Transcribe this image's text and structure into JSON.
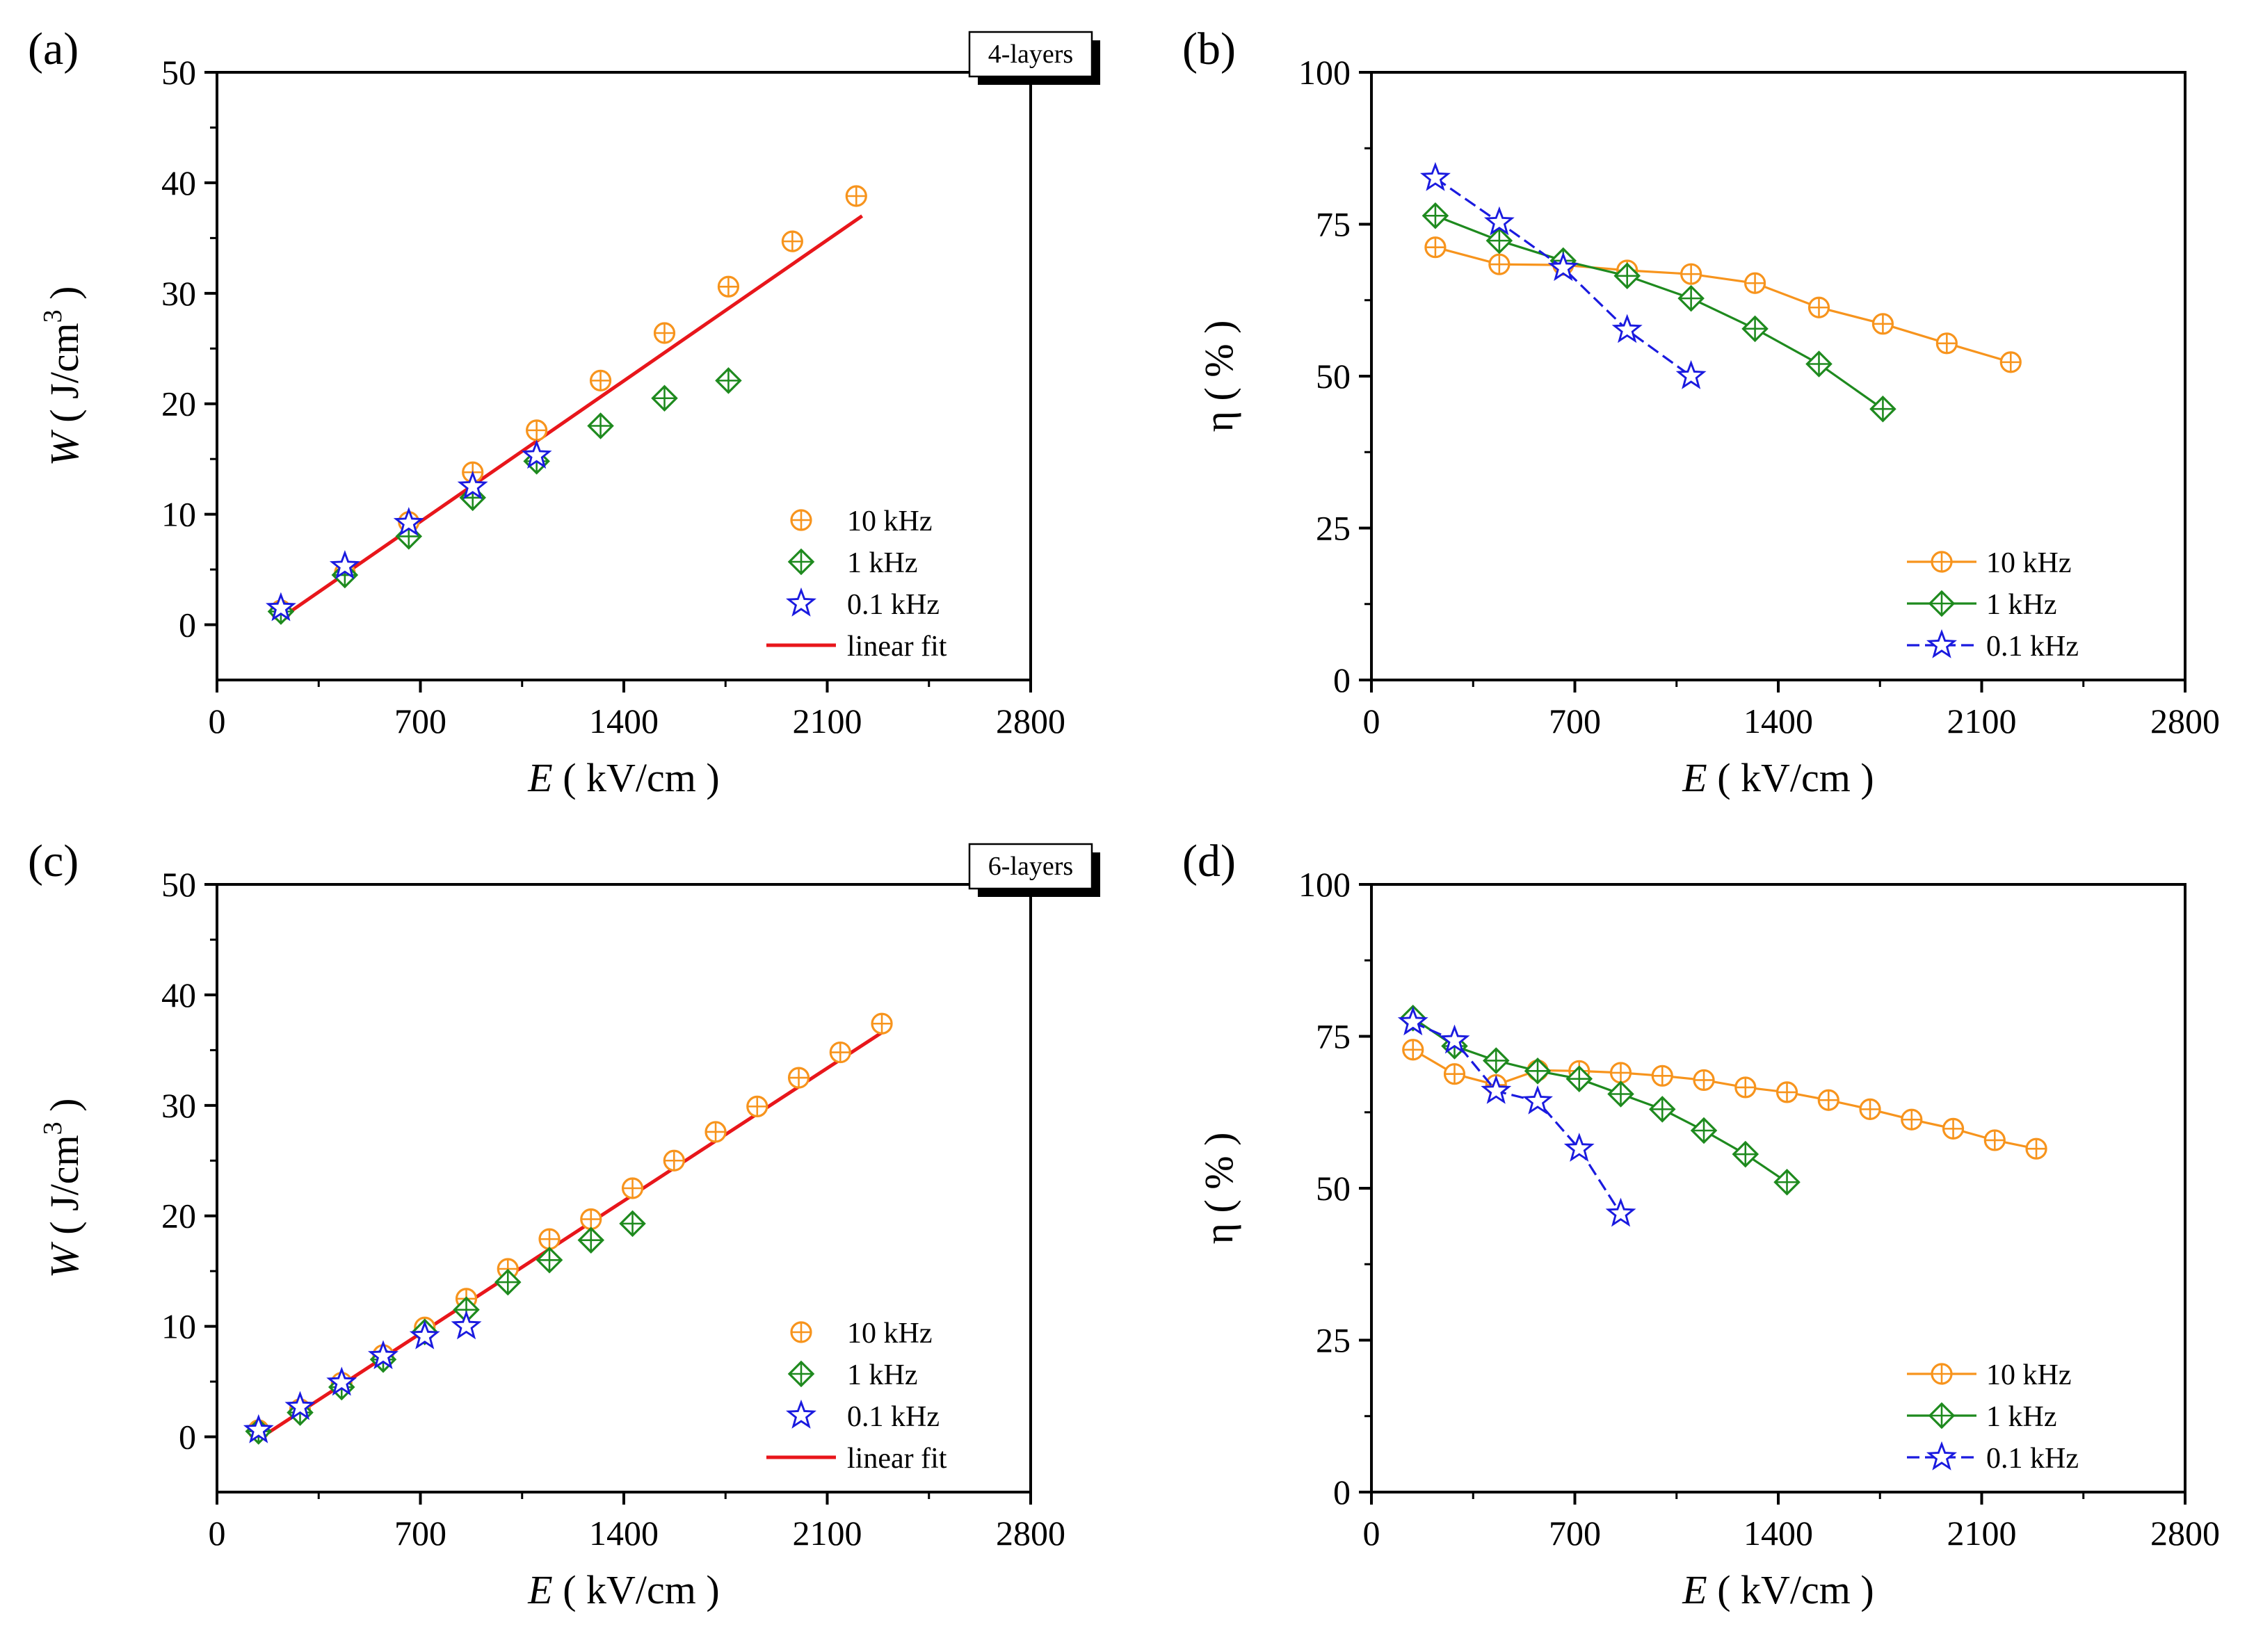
{
  "colors": {
    "f10k": "#f7941d",
    "f1k": "#1e8a1e",
    "f01k": "#1a1adf",
    "fit": "#e8161b"
  },
  "chart_data": [
    {
      "id": "a",
      "type": "scatter",
      "panel_label": "(a)",
      "tag": "4-layers",
      "xlabel_italic": "E",
      "xlabel_rest": " ( kV/cm )",
      "ylabel_italic": "W",
      "ylabel_rest": " ( J/cm",
      "ylabel_sup": "3",
      "ylabel_end": " )",
      "xlim": [
        0,
        2800
      ],
      "ylim": [
        -5,
        50
      ],
      "xticks": [
        0,
        700,
        1400,
        2100,
        2800
      ],
      "yticks": [
        0,
        10,
        20,
        30,
        40,
        50
      ],
      "legend_position": "bottom-right",
      "series": [
        {
          "name": "10 kHz",
          "marker": "circle-plus",
          "color": "#f7941d",
          "connect": false,
          "x": [
            220,
            440,
            660,
            880,
            1100,
            1320,
            1540,
            1760,
            1980,
            2200
          ],
          "y": [
            1.3,
            4.7,
            9.3,
            13.8,
            17.6,
            22.1,
            26.4,
            30.6,
            34.7,
            38.8
          ]
        },
        {
          "name": "1 kHz",
          "marker": "diamond-plus",
          "color": "#1e8a1e",
          "connect": false,
          "x": [
            220,
            440,
            660,
            880,
            1100,
            1320,
            1540,
            1760
          ],
          "y": [
            1.2,
            4.5,
            8.0,
            11.5,
            14.8,
            18.0,
            20.5,
            22.1
          ]
        },
        {
          "name": "0.1 kHz",
          "marker": "star",
          "color": "#1a1adf",
          "connect": false,
          "x": [
            220,
            440,
            660,
            880,
            1100
          ],
          "y": [
            1.5,
            5.3,
            9.2,
            12.5,
            15.3
          ]
        }
      ],
      "fit": {
        "name": "linear fit",
        "x": [
          220,
          2220
        ],
        "y": [
          0.6,
          37.0
        ]
      }
    },
    {
      "id": "b",
      "type": "line",
      "panel_label": "(b)",
      "xlabel_italic": "E",
      "xlabel_rest": " ( kV/cm )",
      "ylabel": "η ( % )",
      "xlim": [
        0,
        2800
      ],
      "ylim": [
        0,
        100
      ],
      "xticks": [
        0,
        700,
        1400,
        2100,
        2800
      ],
      "yticks": [
        0,
        25,
        50,
        75,
        100
      ],
      "legend_position": "bottom-right",
      "series": [
        {
          "name": "10 kHz",
          "marker": "circle-plus",
          "color": "#f7941d",
          "connect": true,
          "x": [
            220,
            440,
            660,
            880,
            1100,
            1320,
            1540,
            1760,
            1980,
            2200
          ],
          "y": [
            71.2,
            68.4,
            68.3,
            67.4,
            66.8,
            65.3,
            61.3,
            58.6,
            55.4,
            52.3
          ]
        },
        {
          "name": "1 kHz",
          "marker": "diamond-plus",
          "color": "#1e8a1e",
          "connect": true,
          "x": [
            220,
            440,
            660,
            880,
            1100,
            1320,
            1540,
            1760
          ],
          "y": [
            76.4,
            72.3,
            69.0,
            66.5,
            62.8,
            57.8,
            52.0,
            44.6
          ]
        },
        {
          "name": "0.1 kHz",
          "marker": "star",
          "color": "#1a1adf",
          "connect": true,
          "x": [
            220,
            440,
            660,
            880,
            1100
          ],
          "y": [
            82.6,
            75.3,
            67.8,
            57.6,
            50.0
          ]
        }
      ]
    },
    {
      "id": "c",
      "type": "scatter",
      "panel_label": "(c)",
      "tag": "6-layers",
      "xlabel_italic": "E",
      "xlabel_rest": " ( kV/cm )",
      "ylabel_italic": "W",
      "ylabel_rest": " ( J/cm",
      "ylabel_sup": "3",
      "ylabel_end": " )",
      "xlim": [
        0,
        2800
      ],
      "ylim": [
        -5,
        50
      ],
      "xticks": [
        0,
        700,
        1400,
        2100,
        2800
      ],
      "yticks": [
        0,
        10,
        20,
        30,
        40,
        50
      ],
      "legend_position": "bottom-right",
      "series": [
        {
          "name": "10 kHz",
          "marker": "circle-plus",
          "color": "#f7941d",
          "connect": false,
          "x": [
            143,
            286,
            429,
            572,
            715,
            858,
            1001,
            1144,
            1287,
            1430,
            1573,
            1716,
            1859,
            2002,
            2145,
            2288
          ],
          "y": [
            0.6,
            2.5,
            4.9,
            7.4,
            9.9,
            12.5,
            15.2,
            17.9,
            19.7,
            22.5,
            25.0,
            27.6,
            29.9,
            32.5,
            34.8,
            37.4
          ]
        },
        {
          "name": "1 kHz",
          "marker": "diamond-plus",
          "color": "#1e8a1e",
          "connect": false,
          "x": [
            143,
            286,
            429,
            572,
            715,
            858,
            1001,
            1144,
            1287,
            1430
          ],
          "y": [
            0.5,
            2.2,
            4.5,
            7.0,
            9.5,
            11.5,
            14.0,
            16.0,
            17.8,
            19.3
          ]
        },
        {
          "name": "0.1 kHz",
          "marker": "star",
          "color": "#1a1adf",
          "connect": false,
          "x": [
            143,
            286,
            429,
            572,
            715,
            858
          ],
          "y": [
            0.6,
            2.7,
            4.9,
            7.3,
            9.1,
            10.0
          ]
        }
      ],
      "fit": {
        "name": "linear fit",
        "x": [
          143,
          2300
        ],
        "y": [
          -0.2,
          36.8
        ]
      }
    },
    {
      "id": "d",
      "type": "line",
      "panel_label": "(d)",
      "xlabel_italic": "E",
      "xlabel_rest": " ( kV/cm )",
      "ylabel": "η ( % )",
      "xlim": [
        0,
        2800
      ],
      "ylim": [
        0,
        100
      ],
      "xticks": [
        0,
        700,
        1400,
        2100,
        2800
      ],
      "yticks": [
        0,
        25,
        50,
        75,
        100
      ],
      "legend_position": "bottom-right",
      "series": [
        {
          "name": "10 kHz",
          "marker": "circle-plus",
          "color": "#f7941d",
          "connect": true,
          "x": [
            143,
            286,
            429,
            572,
            715,
            858,
            1001,
            1144,
            1287,
            1430,
            1573,
            1716,
            1859,
            2002,
            2145,
            2288
          ],
          "y": [
            72.8,
            68.8,
            67.0,
            69.4,
            69.3,
            69.0,
            68.5,
            67.8,
            66.6,
            65.8,
            64.5,
            63.0,
            61.3,
            59.8,
            57.9,
            56.5
          ]
        },
        {
          "name": "1 kHz",
          "marker": "diamond-plus",
          "color": "#1e8a1e",
          "connect": true,
          "x": [
            143,
            286,
            429,
            572,
            715,
            858,
            1001,
            1144,
            1287,
            1430
          ],
          "y": [
            78.0,
            73.4,
            71.0,
            69.3,
            68.0,
            65.5,
            63.0,
            59.5,
            55.6,
            51.0
          ]
        },
        {
          "name": "0.1 kHz",
          "marker": "star",
          "color": "#1a1adf",
          "connect": true,
          "x": [
            143,
            286,
            429,
            572,
            715,
            858
          ],
          "y": [
            77.3,
            74.3,
            66.0,
            64.3,
            56.5,
            45.8
          ]
        }
      ]
    }
  ]
}
